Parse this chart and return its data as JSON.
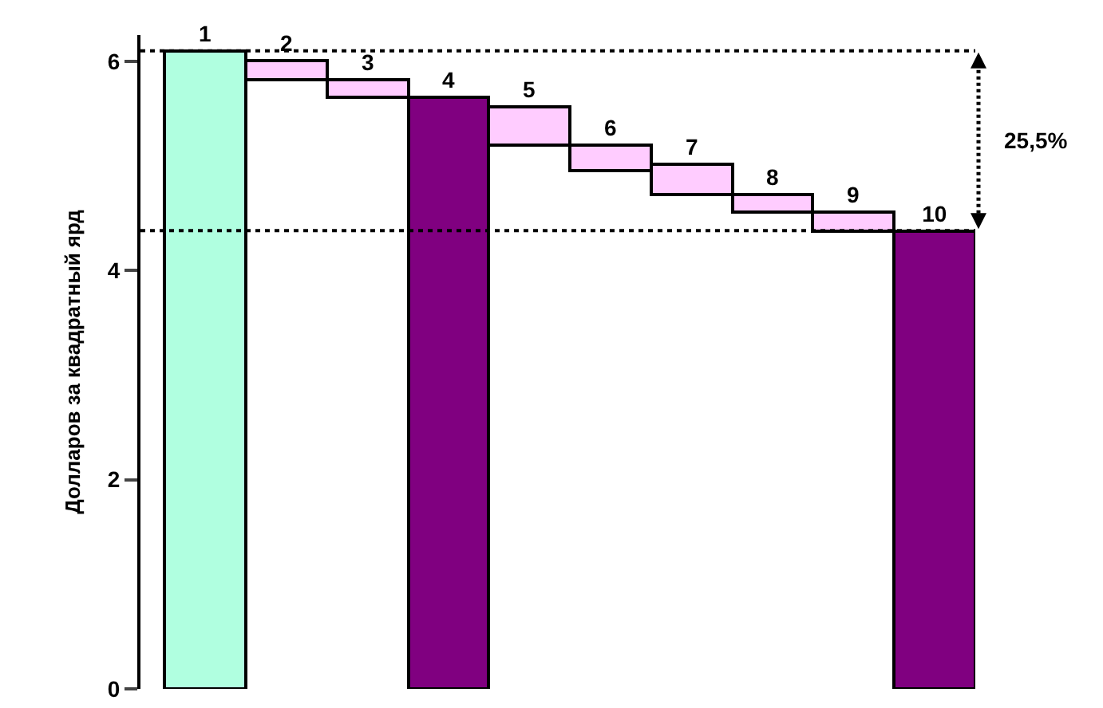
{
  "chart_data": {
    "type": "bar",
    "ylabel": "Долларов за квадратный ярд",
    "categories": [
      "1",
      "2",
      "3",
      "4",
      "5",
      "6",
      "7",
      "8",
      "9",
      "10"
    ],
    "values": [
      6.1,
      0.17,
      0.17,
      5.65,
      0.36,
      0.24,
      0.29,
      0.17,
      0.18,
      4.38
    ],
    "base": [
      0,
      5.83,
      5.65,
      0,
      5.2,
      4.96,
      4.73,
      4.56,
      4.38,
      0
    ],
    "colors": [
      "#b0ffe0",
      "#ffccff",
      "#ffccff",
      "#800080",
      "#ffccff",
      "#ffccff",
      "#ffccff",
      "#ffccff",
      "#ffccff",
      "#800080"
    ],
    "ylim": [
      0,
      6.25
    ],
    "yticks": [
      0,
      2,
      4,
      6
    ],
    "tick_labels": "y",
    "ref_lines": [
      {
        "axis": "y",
        "value": 6.1,
        "color": "#000000",
        "line_style": "dotted"
      },
      {
        "axis": "y",
        "value": 4.38,
        "color": "#000000",
        "line_style": "dotted"
      }
    ],
    "annotations": [
      "25,5%"
    ]
  }
}
